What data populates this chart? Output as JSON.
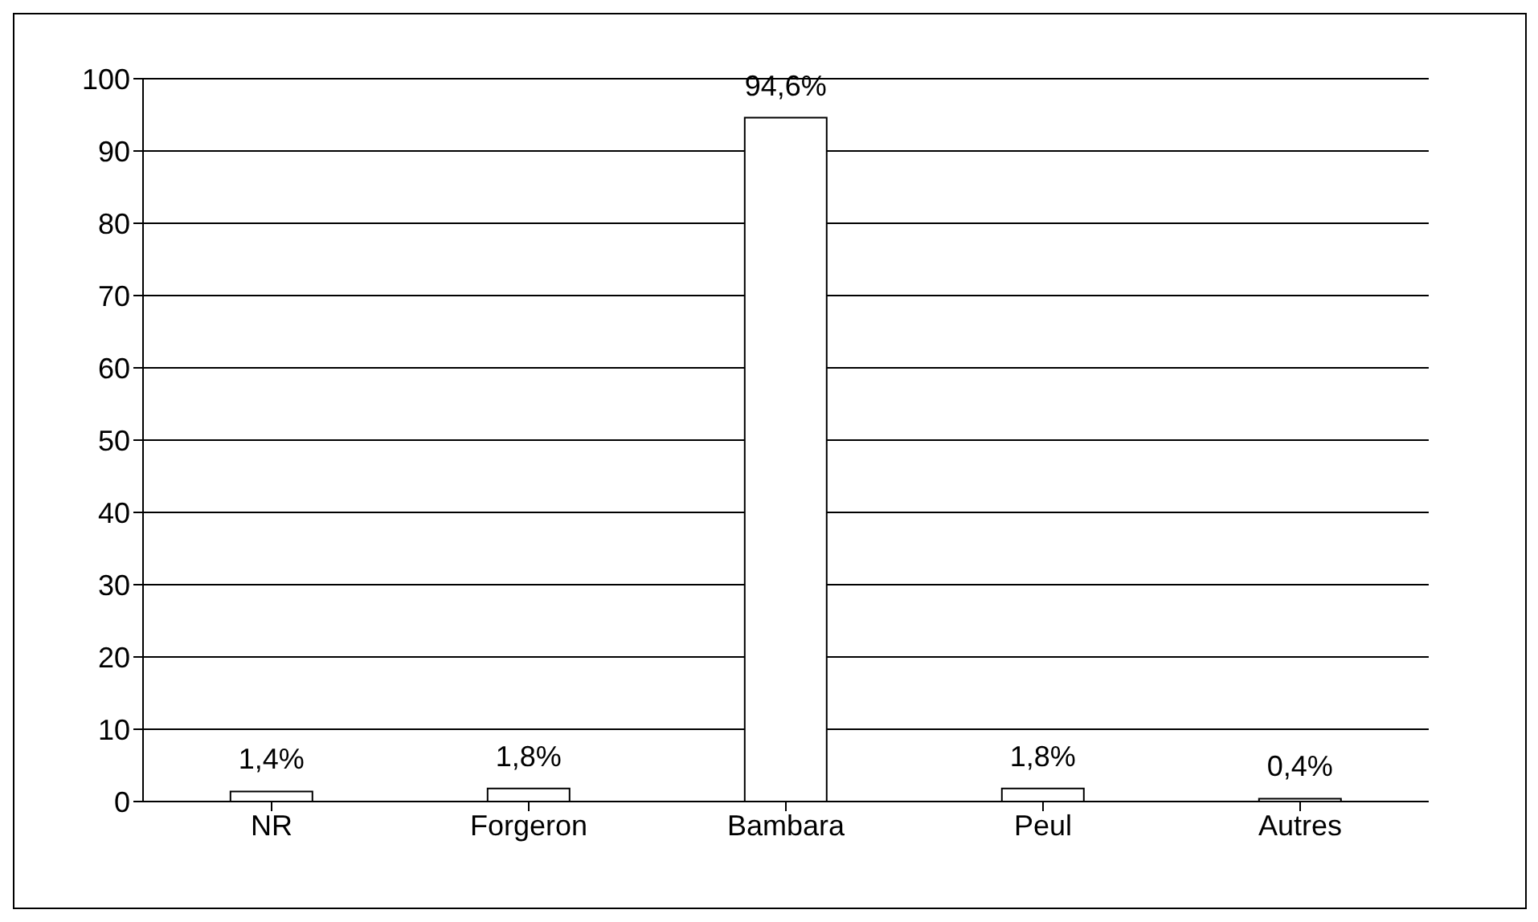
{
  "chart_data": {
    "type": "bar",
    "categories": [
      "NR",
      "Forgeron",
      "Bambara",
      "Peul",
      "Autres"
    ],
    "values": [
      1.4,
      1.8,
      94.6,
      1.8,
      0.4
    ],
    "value_labels": [
      "1,4%",
      "1,8%",
      "94,6%",
      "1,8%",
      "0,4%"
    ],
    "color": "#ffffff",
    "ylim": [
      0,
      100
    ],
    "yticks": [
      0,
      10,
      20,
      30,
      40,
      50,
      60,
      70,
      80,
      90,
      100
    ],
    "grid": "y"
  }
}
